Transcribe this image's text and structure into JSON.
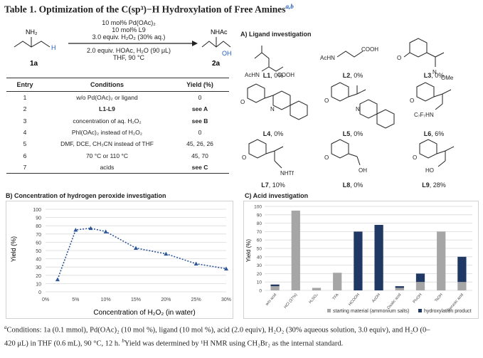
{
  "title": {
    "text": "Table 1. Optimization of the C(sp³)−H Hydroxylation of Free Amines",
    "sup": "a,b"
  },
  "scheme": {
    "conditions_top": [
      "10 mol% Pd(OAc)₂",
      "10 mol% L9",
      "3.0 equiv. H₂O₂ (30% aq.)"
    ],
    "conditions_bottom": [
      "2.0 equiv. HOAc, H₂O (90 μL)",
      "THF, 90 °C"
    ],
    "reactant_label": "1a",
    "product_label": "2a",
    "reactant_atoms": {
      "amine": "NH₂",
      "h": "H"
    },
    "product_atoms": {
      "nhac": "NHAc",
      "oh": "OH"
    }
  },
  "table": {
    "headers": [
      "Entry",
      "Conditions",
      "Yield (%)"
    ],
    "rows": [
      {
        "entry": "1",
        "conditions": "w/o Pd(OAc)₂ or ligand",
        "yield": "0"
      },
      {
        "entry": "2",
        "conditions": "L1-L9",
        "yield": "see A"
      },
      {
        "entry": "3",
        "conditions": "concentration of aq. H₂O₂",
        "yield": "see B"
      },
      {
        "entry": "4",
        "conditions": "PhI(OAc)₂ instead of H₂O₂",
        "yield": "0"
      },
      {
        "entry": "5",
        "conditions": "DMF, DCE, CH₃CN instead of THF",
        "yield": "45, 26, 26"
      },
      {
        "entry": "6",
        "conditions": "70 °C or 110 °C",
        "yield": "45, 70"
      },
      {
        "entry": "7",
        "conditions": "acids",
        "yield": "see C"
      }
    ]
  },
  "ligands": {
    "section_title": "A) Ligand investigation",
    "items": [
      {
        "name": "L1",
        "yield": ", 0%"
      },
      {
        "name": "L2",
        "yield": ", 0%"
      },
      {
        "name": "L3",
        "yield": ", 0%"
      },
      {
        "name": "L4",
        "yield": ", 0%"
      },
      {
        "name": "L5",
        "yield": ", 0%"
      },
      {
        "name": "L6",
        "yield": ", 6%"
      },
      {
        "name": "L7",
        "yield": ", 10%"
      },
      {
        "name": "L8",
        "yield": ", 0%"
      },
      {
        "name": "L9",
        "yield": ", 28%"
      }
    ],
    "fragments": {
      "acnh_cooh_1": "AcHN",
      "cooh_1": "COOH",
      "achn_2": "AcHN",
      "cooh_2": "COOH",
      "ome_3": "OMe",
      "n_3": "N",
      "c7f7hn": "C₇F₇HN",
      "nhtf": "NHTf",
      "oh_8": "OH",
      "ho_9": "HO",
      "h": "H",
      "n": "N",
      "o": "O"
    }
  },
  "chart_data": [
    {
      "type": "line",
      "title": "B) Concentration of hydrogen peroxide investigation",
      "xlabel": "Concentration of H₂O₂ (in water)",
      "ylabel": "Yield (%)",
      "x": [
        0.02,
        0.05,
        0.075,
        0.1,
        0.15,
        0.2,
        0.25,
        0.3
      ],
      "y": [
        15,
        75,
        77,
        73,
        53,
        46,
        34,
        28
      ],
      "xlim": [
        0,
        0.3
      ],
      "ylim": [
        0,
        100
      ],
      "x_ticks": [
        "0%",
        "5%",
        "10%",
        "15%",
        "20%",
        "25%",
        "30%"
      ],
      "y_ticks": [
        "0",
        "10",
        "20",
        "30",
        "40",
        "50",
        "60",
        "70",
        "80",
        "90",
        "100"
      ],
      "grid": true,
      "color": "#2e5597"
    },
    {
      "type": "bar",
      "title": "C) Acid investigation",
      "ylabel": "Yield (%)",
      "categories": [
        "w/o acid",
        "HCl (37%)",
        "H₂SO₄",
        "TFA",
        "HCOOH",
        "AcOH",
        "Oxalic acid",
        "PivOH",
        "TsOH",
        "Benzoic acid"
      ],
      "series": [
        {
          "name": "starting material (ammonium salts)",
          "values": [
            5,
            95,
            3,
            21,
            0,
            0,
            3,
            10,
            70,
            10
          ],
          "color": "#a6a6a6"
        },
        {
          "name": "hydroxylation product",
          "values": [
            2,
            0,
            0,
            0,
            70,
            78,
            2,
            10,
            0,
            30
          ],
          "color": "#203864"
        }
      ],
      "stacked": true,
      "ylim": [
        0,
        100
      ],
      "y_ticks": [
        "0",
        "10",
        "20",
        "30",
        "40",
        "50",
        "60",
        "70",
        "80",
        "90",
        "100"
      ],
      "grid": true,
      "legend": "bottom"
    }
  ],
  "footnote": {
    "line1": "Conditions: 1a (0.1 mmol), Pd(OAc)₂ (10 mol %), ligand (10 mol %), acid (2.0 equiv), H₂O₂ (30% aqueous solution, 3.0 equiv), and H₂O (0–",
    "line2": "420 μL) in THF (0.6 mL), 90 °C, 12 h. ",
    "line2b": "Yield was determined by ¹H NMR using CH₂Br₂ as the internal standard.",
    "mark_a": "a",
    "mark_b": "b"
  }
}
